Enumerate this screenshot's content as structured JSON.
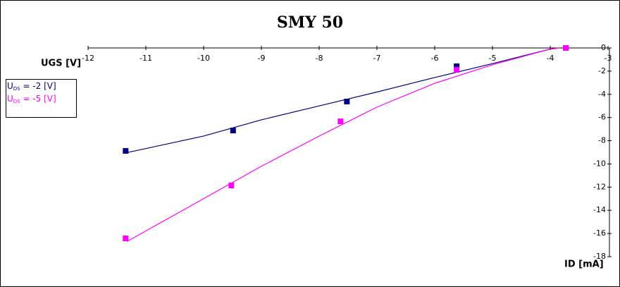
{
  "chart_data": {
    "type": "line",
    "title": "SMY 50",
    "x_label": "UGS [V]",
    "y_label": "ID [mA]",
    "xlim": [
      -12,
      -3
    ],
    "xticks": [
      -12,
      -11,
      -10,
      -9,
      -8,
      -7,
      -6,
      -5,
      -4,
      -3
    ],
    "ylim": [
      -18,
      0
    ],
    "yticks": [
      0,
      -2,
      -4,
      -6,
      -8,
      -10,
      -12,
      -14,
      -16,
      -18
    ],
    "series": [
      {
        "name": {
          "main": "U",
          "sub": "DS",
          "rest": " = -2 [V]"
        },
        "color": "#000080",
        "x": [
          -11.35,
          -9.49,
          -7.52,
          -5.62,
          -3.73
        ],
        "values": [
          -8.88,
          -7.12,
          -4.62,
          -1.58,
          0
        ],
        "fit_x": [
          -11.35,
          -10,
          -9,
          -8,
          -7,
          -6,
          -5,
          -4,
          -3.85
        ],
        "fit_values": [
          -9.05,
          -7.6,
          -6.2,
          -5.0,
          -3.8,
          -2.55,
          -1.35,
          -0.1,
          0
        ]
      },
      {
        "name": {
          "main": "U",
          "sub": "DS",
          "rest": " = -5 [V]"
        },
        "color": "#ff00ff",
        "x": [
          -11.35,
          -9.52,
          -7.63,
          -5.62,
          -3.73
        ],
        "values": [
          -16.42,
          -11.86,
          -6.33,
          -1.89,
          0
        ],
        "fit_x": [
          -11.33,
          -10,
          -9,
          -8,
          -7,
          -6,
          -5,
          -4,
          -3.85
        ],
        "fit_values": [
          -16.7,
          -13.0,
          -10.2,
          -7.6,
          -5.1,
          -3.05,
          -1.45,
          -0.1,
          0
        ]
      }
    ]
  }
}
